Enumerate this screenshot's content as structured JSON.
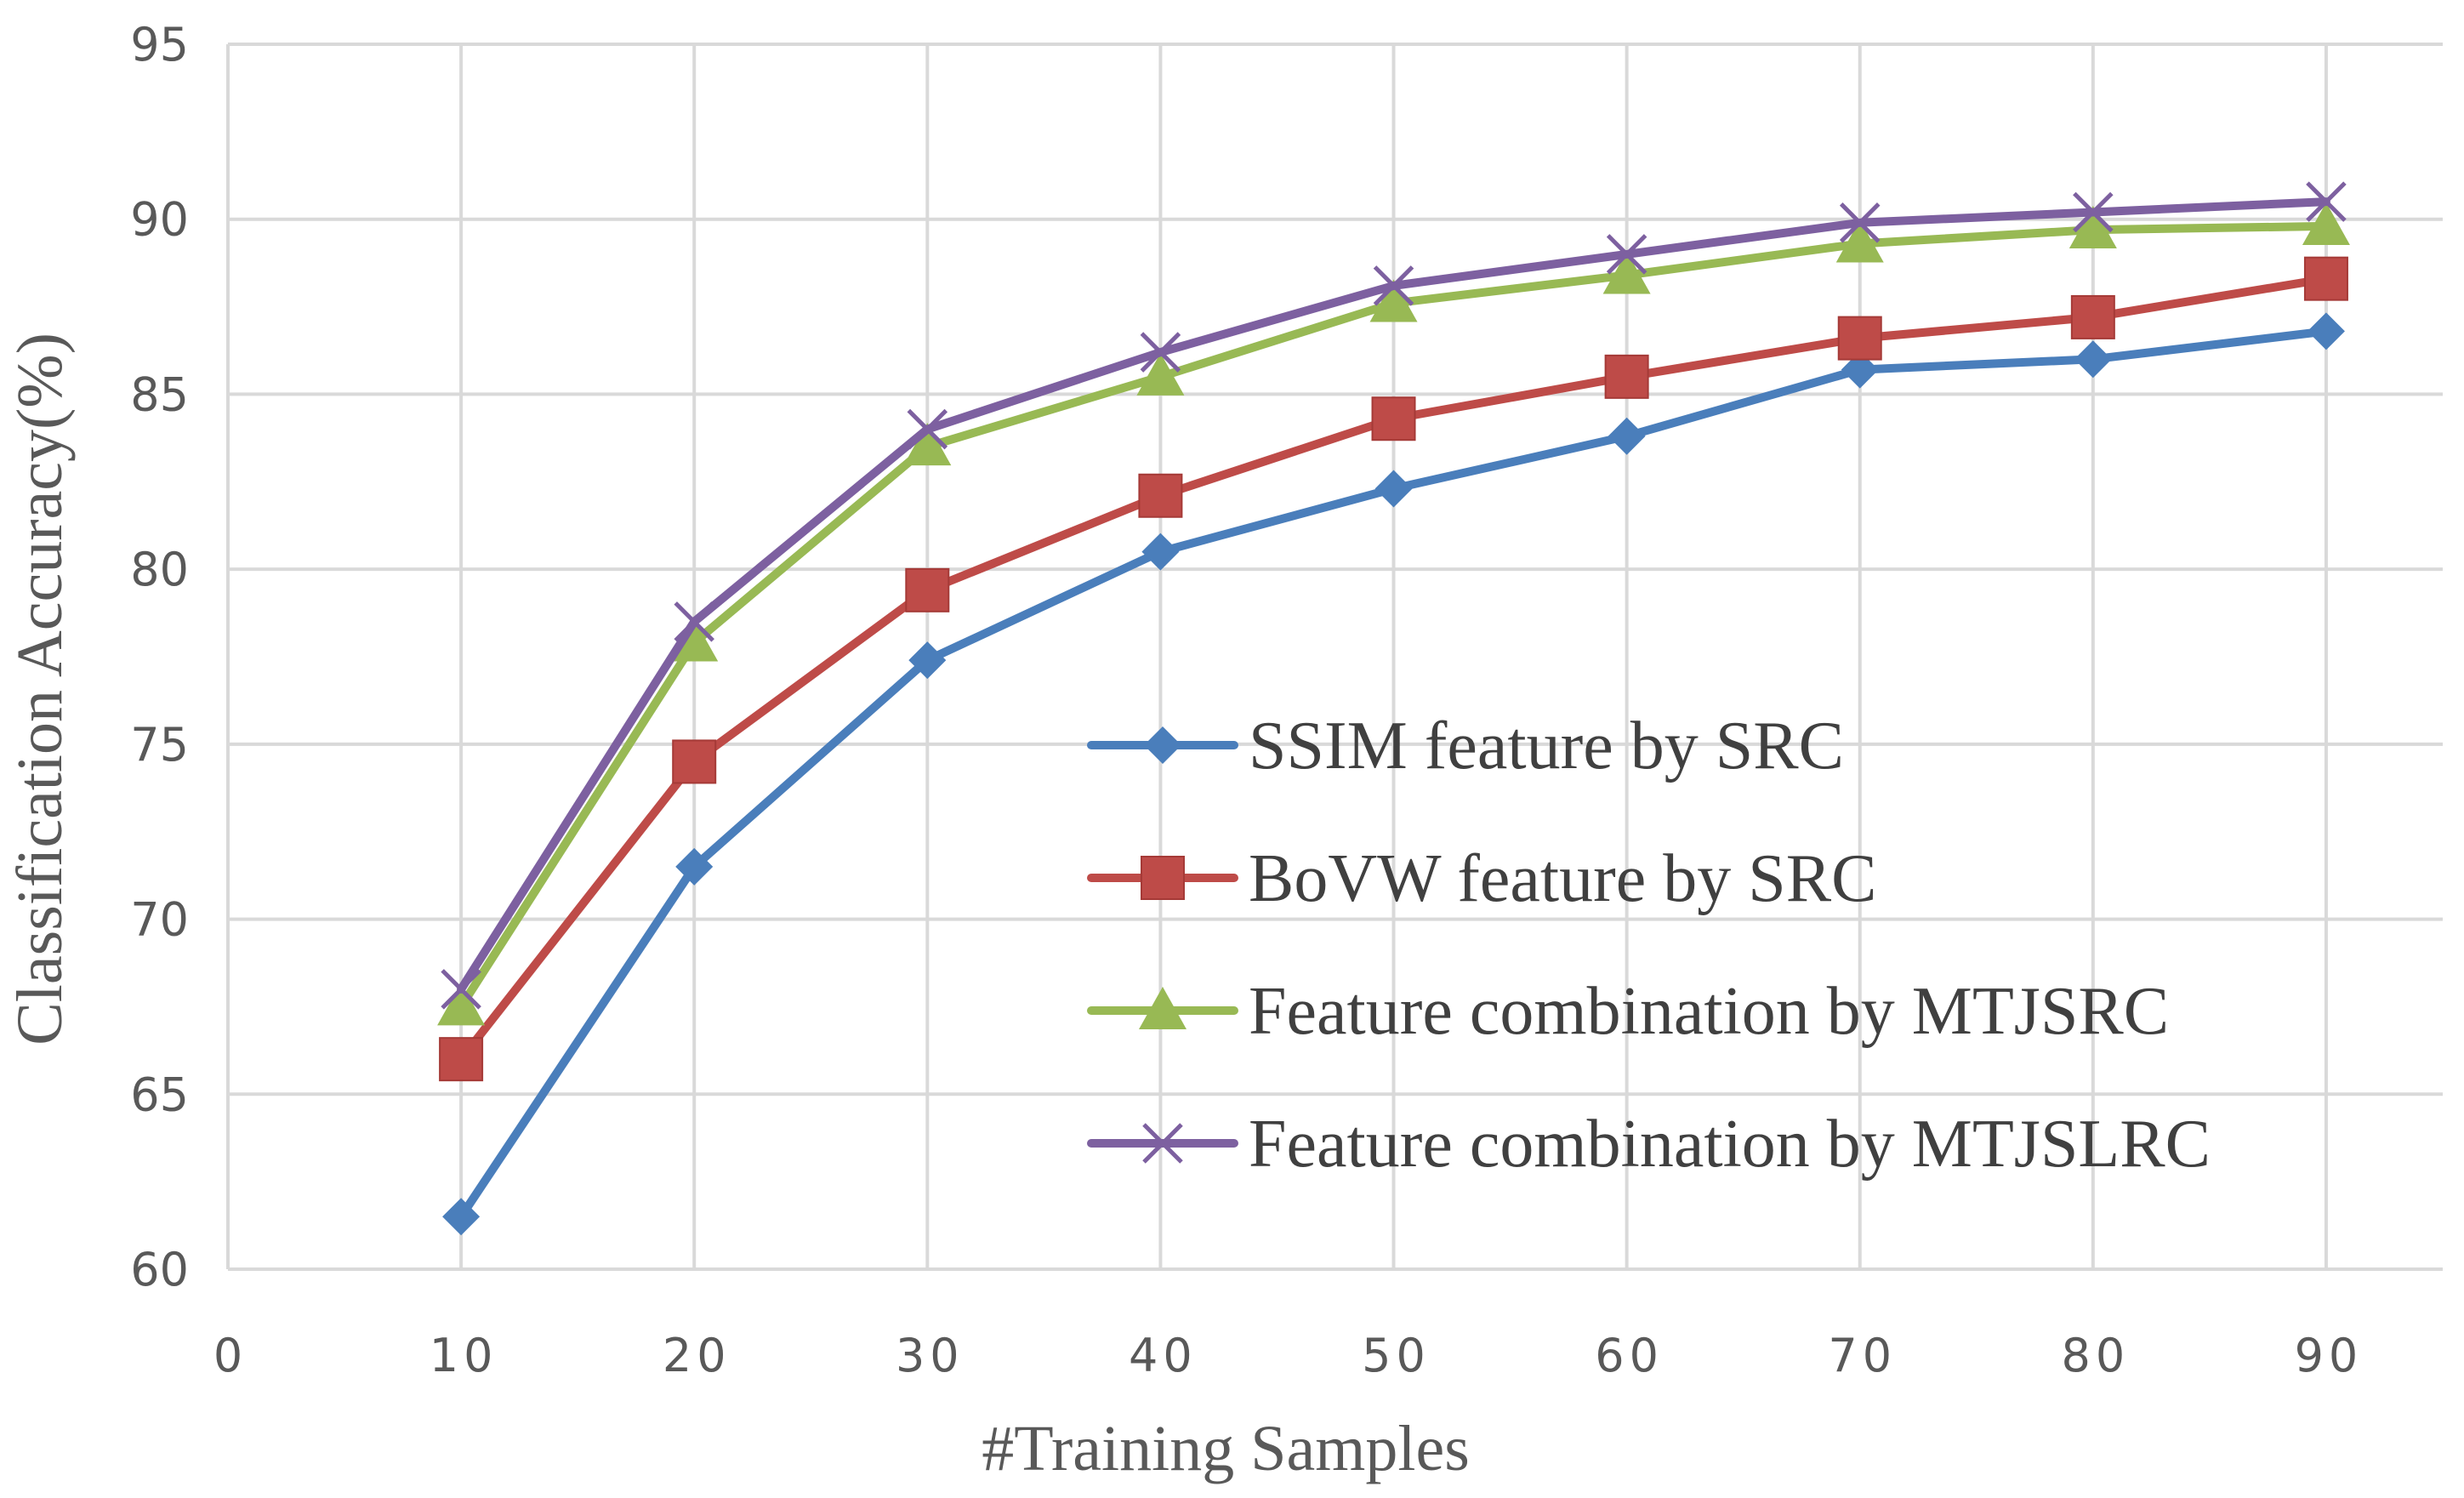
{
  "chart_data": {
    "type": "line",
    "title": "",
    "xlabel": "#Training Samples",
    "ylabel": "Classification Accuracy(%)",
    "xlim": [
      0,
      95
    ],
    "ylim": [
      60,
      95
    ],
    "x_ticks": [
      "0",
      "10",
      "20",
      "30",
      "40",
      "50",
      "60",
      "70",
      "80",
      "90"
    ],
    "y_ticks": [
      "60",
      "65",
      "70",
      "75",
      "80",
      "85",
      "90",
      "95"
    ],
    "grid": true,
    "legend_position": "right-center",
    "x": [
      10,
      20,
      30,
      40,
      50,
      60,
      70,
      80,
      90
    ],
    "series": [
      {
        "name": "SSIM feature by SRC",
        "color": "#4a7ebb",
        "marker": "diamond",
        "values": [
          61.5,
          71.5,
          77.4,
          80.5,
          82.3,
          83.8,
          85.7,
          86.0,
          86.8
        ]
      },
      {
        "name": "BoVW feature by SRC",
        "color": "#be4b48",
        "marker": "square",
        "values": [
          66.0,
          74.5,
          79.4,
          82.1,
          84.3,
          85.5,
          86.6,
          87.2,
          88.3
        ]
      },
      {
        "name": "Feature combination by MTJSRC",
        "color": "#98b954",
        "marker": "triangle",
        "values": [
          67.5,
          77.9,
          83.5,
          85.5,
          87.6,
          88.4,
          89.3,
          89.7,
          89.8
        ]
      },
      {
        "name": "Feature combination by MTJSLRC",
        "color": "#7d60a0",
        "marker": "x",
        "values": [
          68.0,
          78.5,
          84.0,
          86.2,
          88.1,
          89.0,
          89.9,
          90.2,
          90.5
        ]
      }
    ]
  }
}
